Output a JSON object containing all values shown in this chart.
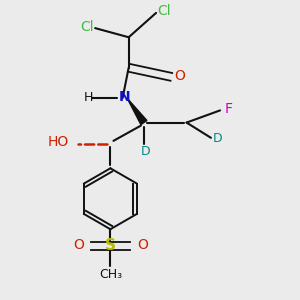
{
  "bg_color": "#ebebeb",
  "colors": {
    "Cl": "#44bb44",
    "O": "#cc2200",
    "N": "#1111cc",
    "F": "#cc00cc",
    "D": "#008888",
    "S": "#bbbb00",
    "C": "#111111",
    "H": "#555555",
    "bond": "#111111",
    "bond_red": "#cc2200",
    "bond_dark": "#222222"
  },
  "figsize": [
    3.0,
    3.0
  ],
  "dpi": 100,
  "xlim": [
    0.05,
    0.95
  ],
  "ylim": [
    0.02,
    1.0
  ]
}
